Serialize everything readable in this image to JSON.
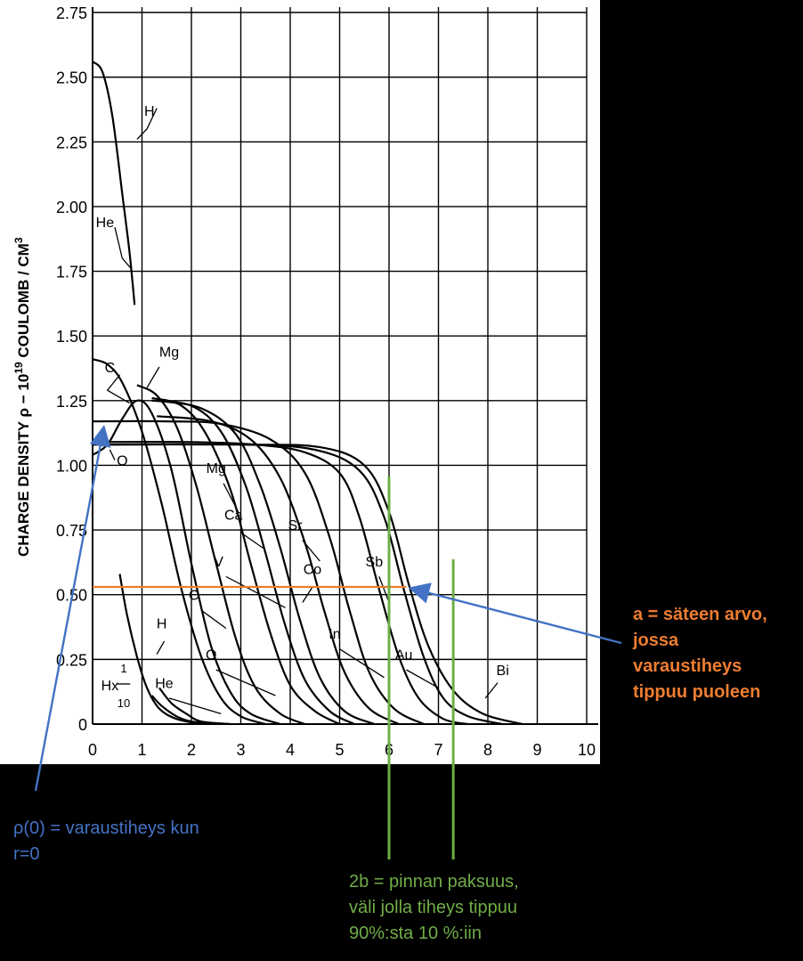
{
  "chart_data": {
    "type": "line",
    "ylabel": "CHARGE DENSITYρ − 10¹⁹ COULOMB / CM³",
    "ylabel_parts": {
      "left": "CHARGE  DENSITY",
      "rho": "ρ − 10",
      "exp": "19",
      "unit": "  COULOMB / CM",
      "unit_exp": "3"
    },
    "xlabel": "",
    "xlim": [
      0,
      10
    ],
    "ylim": [
      0,
      2.75
    ],
    "xticks": [
      "0",
      "1",
      "2",
      "3",
      "4",
      "5",
      "6",
      "7",
      "8",
      "9",
      "10"
    ],
    "yticks": [
      "0",
      "0.25",
      "0.50",
      "0.75",
      "1.00",
      "1.25",
      "1.50",
      "1.75",
      "2.00",
      "2.25",
      "2.50",
      "2.75"
    ],
    "grid": true,
    "series": [
      {
        "name": "H",
        "values": [
          [
            0.0,
            2.56
          ],
          [
            0.2,
            2.52
          ],
          [
            0.4,
            2.35
          ],
          [
            0.6,
            2.05
          ],
          [
            0.75,
            1.82
          ],
          [
            0.85,
            1.62
          ]
        ]
      },
      {
        "name": "Hx 1/10",
        "values": [
          [
            0.55,
            0.58
          ],
          [
            0.7,
            0.42
          ],
          [
            0.9,
            0.26
          ],
          [
            1.1,
            0.14
          ],
          [
            1.35,
            0.06
          ],
          [
            1.7,
            0.02
          ],
          [
            2.2,
            0.0
          ]
        ]
      },
      {
        "name": "He",
        "values": [
          [
            1.2,
            0.11
          ],
          [
            1.4,
            0.07
          ],
          [
            1.7,
            0.03
          ],
          [
            2.0,
            0.01
          ],
          [
            2.5,
            0.0
          ]
        ]
      },
      {
        "name": "He (outer)",
        "values": [
          [
            1.35,
            0.14
          ],
          [
            1.6,
            0.08
          ],
          [
            1.9,
            0.04
          ],
          [
            2.2,
            0.01
          ],
          [
            2.8,
            0.0
          ]
        ]
      },
      {
        "name": "C",
        "values": [
          [
            0.0,
            1.41
          ],
          [
            0.3,
            1.39
          ],
          [
            0.6,
            1.32
          ],
          [
            1.0,
            1.13
          ],
          [
            1.4,
            0.85
          ],
          [
            1.8,
            0.52
          ],
          [
            2.2,
            0.26
          ],
          [
            2.6,
            0.1
          ],
          [
            3.0,
            0.03
          ],
          [
            3.5,
            0.0
          ]
        ]
      },
      {
        "name": "O",
        "values": [
          [
            0.0,
            1.04
          ],
          [
            0.3,
            1.08
          ],
          [
            0.6,
            1.18
          ],
          [
            0.9,
            1.25
          ],
          [
            1.2,
            1.2
          ],
          [
            1.6,
            0.98
          ],
          [
            2.0,
            0.62
          ],
          [
            2.4,
            0.3
          ],
          [
            2.8,
            0.12
          ],
          [
            3.2,
            0.04
          ],
          [
            3.8,
            0.0
          ]
        ]
      },
      {
        "name": "Mg",
        "values": [
          [
            0.9,
            1.31
          ],
          [
            1.3,
            1.27
          ],
          [
            1.7,
            1.15
          ],
          [
            2.1,
            0.92
          ],
          [
            2.5,
            0.62
          ],
          [
            2.9,
            0.33
          ],
          [
            3.3,
            0.14
          ],
          [
            3.8,
            0.04
          ],
          [
            4.3,
            0.0
          ]
        ]
      },
      {
        "name": "Ca",
        "values": [
          [
            1.2,
            1.26
          ],
          [
            1.8,
            1.23
          ],
          [
            2.3,
            1.12
          ],
          [
            2.8,
            0.9
          ],
          [
            3.2,
            0.62
          ],
          [
            3.6,
            0.35
          ],
          [
            4.0,
            0.15
          ],
          [
            4.5,
            0.05
          ],
          [
            5.0,
            0.0
          ]
        ]
      },
      {
        "name": "V",
        "values": [
          [
            1.2,
            1.25
          ],
          [
            2.0,
            1.23
          ],
          [
            2.6,
            1.13
          ],
          [
            3.1,
            0.92
          ],
          [
            3.5,
            0.66
          ],
          [
            3.9,
            0.38
          ],
          [
            4.3,
            0.17
          ],
          [
            4.8,
            0.05
          ],
          [
            5.3,
            0.0
          ]
        ]
      },
      {
        "name": "Co",
        "values": [
          [
            1.3,
            1.25
          ],
          [
            2.2,
            1.22
          ],
          [
            2.9,
            1.12
          ],
          [
            3.4,
            0.92
          ],
          [
            3.8,
            0.68
          ],
          [
            4.2,
            0.4
          ],
          [
            4.6,
            0.18
          ],
          [
            5.1,
            0.05
          ],
          [
            5.7,
            0.0
          ]
        ]
      },
      {
        "name": "Sr",
        "values": [
          [
            1.3,
            1.19
          ],
          [
            2.4,
            1.17
          ],
          [
            3.2,
            1.1
          ],
          [
            3.8,
            0.95
          ],
          [
            4.3,
            0.7
          ],
          [
            4.7,
            0.43
          ],
          [
            5.1,
            0.2
          ],
          [
            5.6,
            0.06
          ],
          [
            6.2,
            0.0
          ]
        ]
      },
      {
        "name": "In",
        "values": [
          [
            0.0,
            1.17
          ],
          [
            1.5,
            1.17
          ],
          [
            2.6,
            1.16
          ],
          [
            3.6,
            1.1
          ],
          [
            4.3,
            0.97
          ],
          [
            4.8,
            0.72
          ],
          [
            5.2,
            0.44
          ],
          [
            5.6,
            0.2
          ],
          [
            6.1,
            0.06
          ],
          [
            6.7,
            0.0
          ]
        ]
      },
      {
        "name": "Sb",
        "values": [
          [
            0.0,
            1.09
          ],
          [
            2.0,
            1.09
          ],
          [
            3.3,
            1.08
          ],
          [
            4.3,
            1.05
          ],
          [
            5.0,
            0.97
          ],
          [
            5.4,
            0.8
          ],
          [
            5.8,
            0.52
          ],
          [
            6.2,
            0.26
          ],
          [
            6.6,
            0.1
          ],
          [
            7.1,
            0.02
          ],
          [
            7.6,
            0.0
          ]
        ]
      },
      {
        "name": "Au",
        "values": [
          [
            0.0,
            1.08
          ],
          [
            3.0,
            1.08
          ],
          [
            4.5,
            1.06
          ],
          [
            5.4,
            0.98
          ],
          [
            5.9,
            0.8
          ],
          [
            6.3,
            0.52
          ],
          [
            6.7,
            0.26
          ],
          [
            7.1,
            0.1
          ],
          [
            7.6,
            0.03
          ],
          [
            8.3,
            0.0
          ]
        ]
      },
      {
        "name": "Bi",
        "values": [
          [
            0.0,
            1.08
          ],
          [
            3.0,
            1.08
          ],
          [
            4.6,
            1.07
          ],
          [
            5.5,
            1.0
          ],
          [
            6.0,
            0.82
          ],
          [
            6.4,
            0.54
          ],
          [
            6.8,
            0.3
          ],
          [
            7.3,
            0.13
          ],
          [
            7.9,
            0.04
          ],
          [
            8.7,
            0.0
          ]
        ]
      }
    ],
    "curve_labels": [
      {
        "text": "H",
        "x": 1.15,
        "y": 2.35
      },
      {
        "text": "He",
        "x": 0.25,
        "y": 1.92
      },
      {
        "text": "Mg",
        "x": 1.55,
        "y": 1.42
      },
      {
        "text": "C",
        "x": 0.35,
        "y": 1.36
      },
      {
        "text": "O",
        "x": 0.6,
        "y": 1.0
      },
      {
        "text": "Mg",
        "x": 2.5,
        "y": 0.97
      },
      {
        "text": "Ca",
        "x": 2.85,
        "y": 0.79
      },
      {
        "text": "Sr",
        "x": 4.1,
        "y": 0.75
      },
      {
        "text": "V",
        "x": 2.55,
        "y": 0.61
      },
      {
        "text": "Co",
        "x": 4.45,
        "y": 0.58
      },
      {
        "text": "Sb",
        "x": 5.7,
        "y": 0.61
      },
      {
        "text": "C",
        "x": 2.05,
        "y": 0.48
      },
      {
        "text": "H",
        "x": 1.4,
        "y": 0.37
      },
      {
        "text": "In",
        "x": 4.9,
        "y": 0.33
      },
      {
        "text": "Au",
        "x": 6.3,
        "y": 0.25
      },
      {
        "text": "O",
        "x": 2.4,
        "y": 0.25
      },
      {
        "text": "Bi",
        "x": 8.3,
        "y": 0.19
      },
      {
        "text": "He",
        "x": 1.45,
        "y": 0.14
      }
    ],
    "hx_label": {
      "prefix": "Hx",
      "num": "1",
      "den": "10"
    }
  },
  "annotations": {
    "a_text": [
      "a = säteen arvo,",
      "jossa",
      "varaustiheys",
      "tippuu puoleen"
    ],
    "rho_text": [
      "ρ(0) = varaustiheys kun",
      "r=0"
    ],
    "b_text": [
      "2b = pinnan paksuus,",
      "väli jolla tiheys tippuu",
      "90%:sta 10 %:iin"
    ]
  },
  "colors": {
    "a_color": "#ED7D31",
    "rho_color": "#4472C4",
    "b_color": "#70AD47",
    "ink": "#000000",
    "panel": "#ffffff"
  },
  "markers": {
    "half_density_y": 0.53,
    "half_density_x_end": 6.35,
    "b_x_left": 6.0,
    "b_x_right": 7.3
  }
}
